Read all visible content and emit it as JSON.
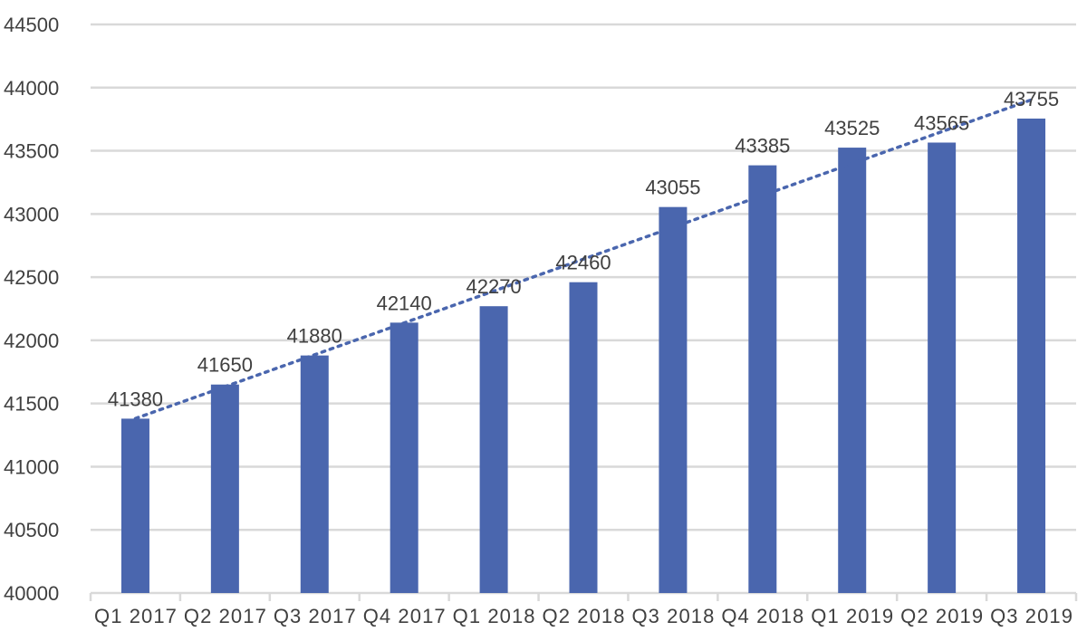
{
  "chart_data": {
    "type": "bar",
    "categories": [
      "Q1 2017",
      "Q2 2017",
      "Q3 2017",
      "Q4 2017",
      "Q1 2018",
      "Q2 2018",
      "Q3 2018",
      "Q4 2018",
      "Q1 2019",
      "Q2 2019",
      "Q3 2019"
    ],
    "values": [
      41380,
      41650,
      41880,
      42140,
      42270,
      42460,
      43055,
      43385,
      43525,
      43565,
      43755
    ],
    "data_labels": [
      "41380",
      "41650",
      "41880",
      "42140",
      "42270",
      "42460",
      "43055",
      "43385",
      "43525",
      "43565",
      "43755"
    ],
    "y_ticks": [
      "40000",
      "40500",
      "41000",
      "41500",
      "42000",
      "42500",
      "43000",
      "43500",
      "44000",
      "44500"
    ],
    "ylim": [
      40000,
      44500
    ],
    "y_tick_step": 500,
    "grid": true,
    "trendline": {
      "type": "linear",
      "style": "dotted"
    },
    "colors": {
      "bar": "#4a66ae",
      "trendline": "#4a66ae",
      "grid": "#d9d9d9",
      "text": "#404040"
    }
  }
}
